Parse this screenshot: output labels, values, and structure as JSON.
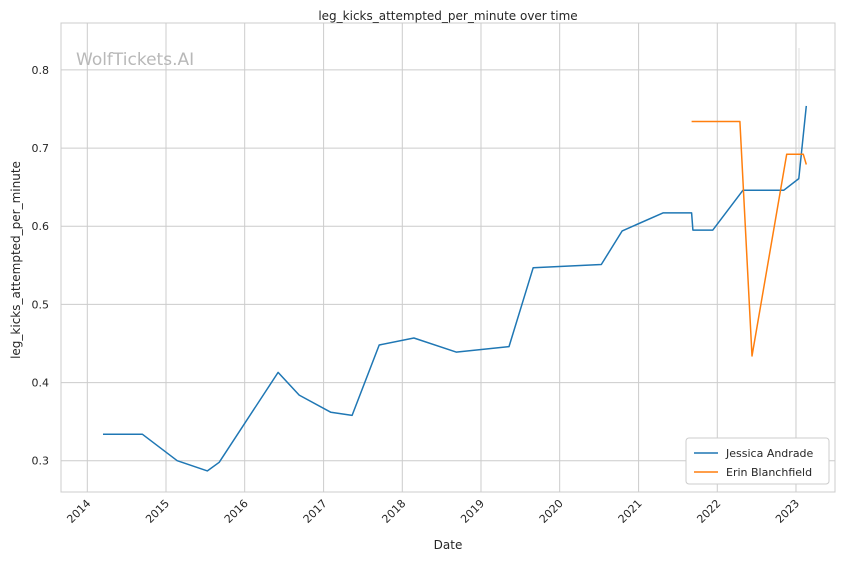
{
  "chart_data": {
    "type": "line",
    "title": "leg_kicks_attempted_per_minute over time",
    "xlabel": "Date",
    "ylabel": "leg_kicks_attempted_per_minute",
    "watermark": "WolfTickets.AI",
    "xlim": [
      "2013-09-01",
      "2023-07-01"
    ],
    "ylim": [
      0.26,
      0.86
    ],
    "x_ticks": [
      "2014",
      "2015",
      "2016",
      "2017",
      "2018",
      "2019",
      "2020",
      "2021",
      "2022",
      "2023"
    ],
    "y_ticks": [
      "0.3",
      "0.4",
      "0.5",
      "0.6",
      "0.7",
      "0.8"
    ],
    "grid": true,
    "legend_position": "bottom-right",
    "series": [
      {
        "name": "Jessica Andrade",
        "color": "#1f77b4",
        "x": [
          "2014-03-15",
          "2014-09-13",
          "2015-02-22",
          "2015-07-12",
          "2015-09-05",
          "2016-06-04",
          "2016-09-10",
          "2017-02-04",
          "2017-05-13",
          "2017-09-16",
          "2018-02-24",
          "2018-09-08",
          "2019-05-11",
          "2019-08-31",
          "2020-07-12",
          "2020-10-17",
          "2021-04-24",
          "2021-09-04",
          "2021-09-10",
          "2021-12-11",
          "2022-04-30",
          "2022-11-05",
          "2023-01-14",
          "2023-02-18"
        ],
        "values": [
          0.334,
          0.334,
          0.3,
          0.287,
          0.298,
          0.413,
          0.384,
          0.362,
          0.358,
          0.448,
          0.457,
          0.439,
          0.446,
          0.547,
          0.551,
          0.594,
          0.617,
          0.617,
          0.595,
          0.595,
          0.646,
          0.646,
          0.661,
          0.754
        ]
      },
      {
        "name": "Erin Blanchfield",
        "color": "#ff7f0e",
        "x": [
          "2021-09-04",
          "2022-04-16",
          "2022-06-11",
          "2022-11-19",
          "2023-02-04",
          "2023-02-18"
        ],
        "values": [
          0.734,
          0.734,
          0.434,
          0.692,
          0.692,
          0.679
        ]
      }
    ]
  }
}
